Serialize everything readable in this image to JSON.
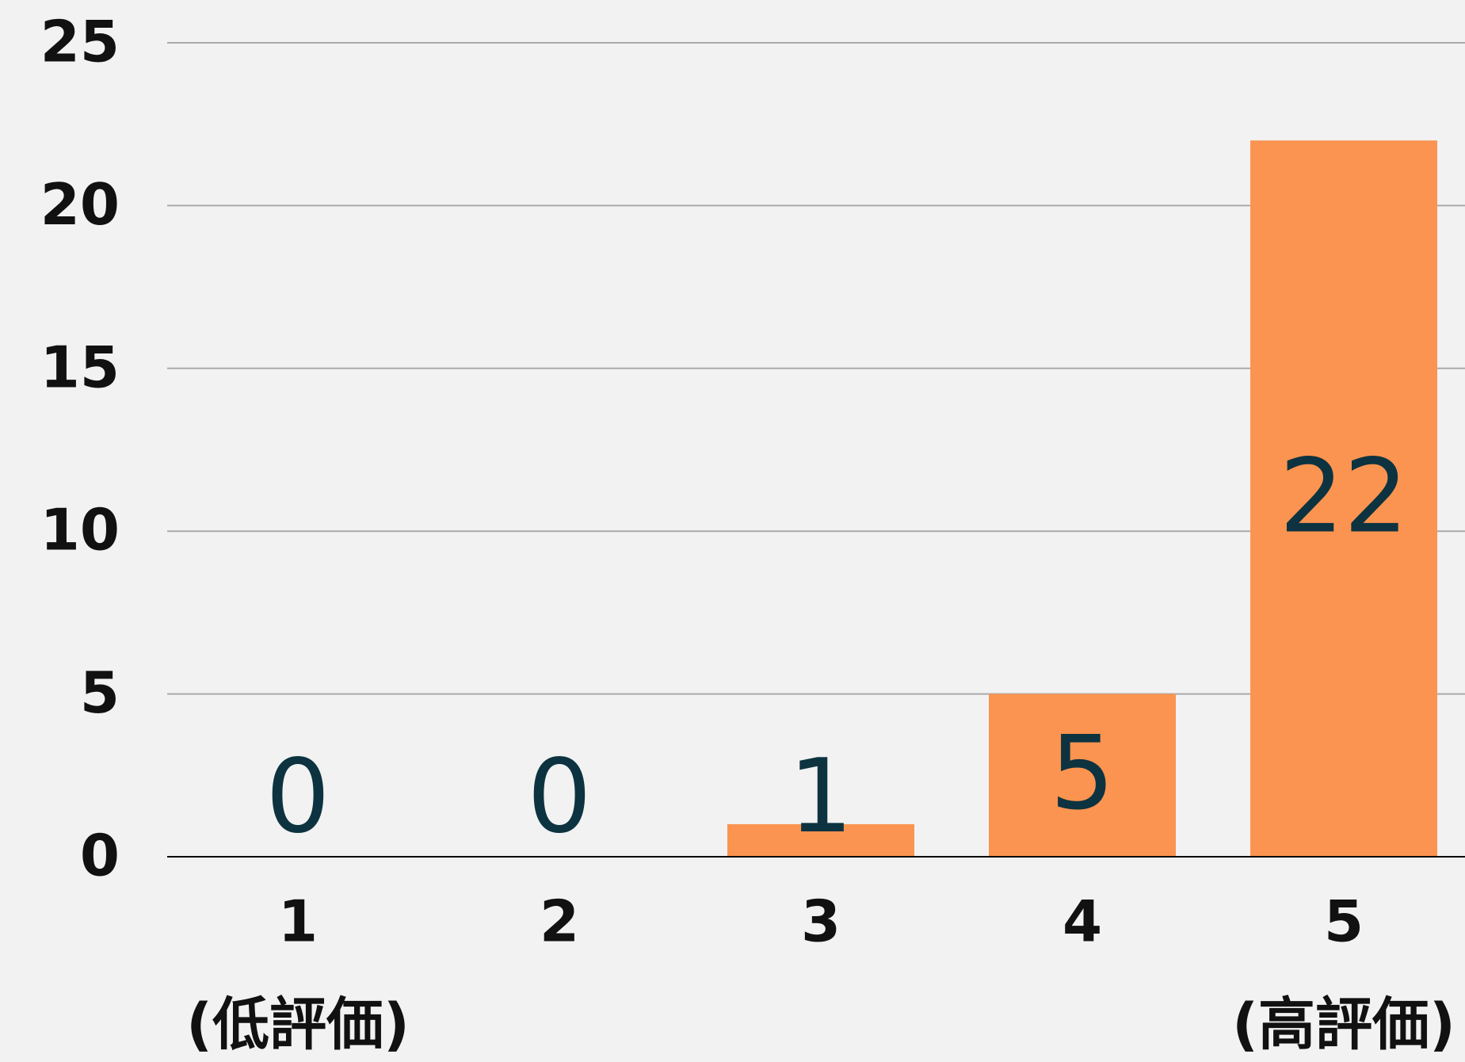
{
  "chart_data": {
    "type": "bar",
    "categories": [
      "1",
      "2",
      "3",
      "4",
      "5"
    ],
    "category_notes": [
      "(低評価)",
      null,
      null,
      null,
      "(高評価)"
    ],
    "values": [
      0,
      0,
      1,
      5,
      22
    ],
    "color": "#fb9450",
    "ylim": [
      0,
      25
    ],
    "yticks": [
      0,
      5,
      10,
      15,
      20,
      25
    ],
    "grid": true
  }
}
